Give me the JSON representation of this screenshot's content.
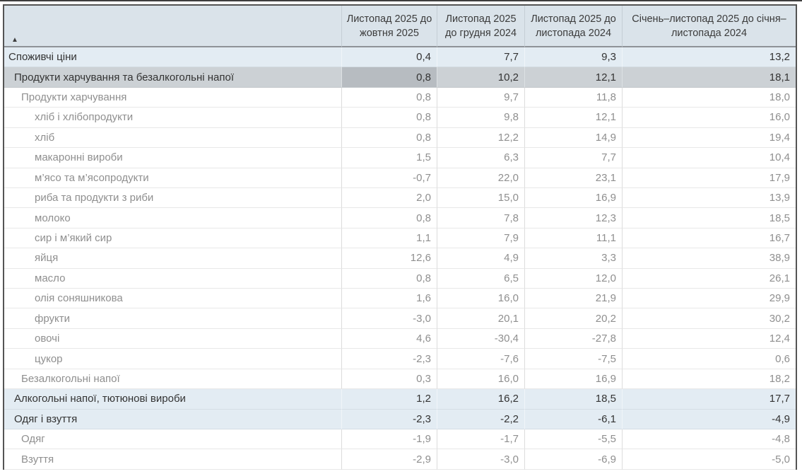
{
  "table": {
    "sort_icon": "▲",
    "sort_icon_name": "sort-ascending-icon",
    "columns": [
      "Листопад 2025 до жовтня 2025",
      "Листопад 2025 до грудня 2024",
      "Листопад 2025 до листопада 2024",
      "Січень–листопад 2025 до січня–листопада 2024"
    ],
    "rows": [
      {
        "label": "Споживчі ціни",
        "level": 0,
        "style": "category",
        "values": [
          "0,4",
          "7,7",
          "9,3",
          "13,2"
        ]
      },
      {
        "label": "Продукти харчування та безалкогольні напої",
        "level": 1,
        "style": "selected",
        "values": [
          "0,8",
          "10,2",
          "12,1",
          "18,1"
        ]
      },
      {
        "label": "Продукти харчування",
        "level": 2,
        "style": "plain",
        "values": [
          "0,8",
          "9,7",
          "11,8",
          "18,0"
        ]
      },
      {
        "label": "хліб і хлібопродукти",
        "level": 3,
        "style": "plain",
        "values": [
          "0,8",
          "9,8",
          "12,1",
          "16,0"
        ]
      },
      {
        "label": "хліб",
        "level": 3,
        "style": "plain",
        "values": [
          "0,8",
          "12,2",
          "14,9",
          "19,4"
        ]
      },
      {
        "label": "макаронні вироби",
        "level": 3,
        "style": "plain",
        "values": [
          "1,5",
          "6,3",
          "7,7",
          "10,4"
        ]
      },
      {
        "label": "м’ясо та м’ясопродукти",
        "level": 3,
        "style": "plain",
        "values": [
          "-0,7",
          "22,0",
          "23,1",
          "17,9"
        ]
      },
      {
        "label": "риба та продукти з риби",
        "level": 3,
        "style": "plain",
        "values": [
          "2,0",
          "15,0",
          "16,9",
          "13,9"
        ]
      },
      {
        "label": "молоко",
        "level": 3,
        "style": "plain",
        "values": [
          "0,8",
          "7,8",
          "12,3",
          "18,5"
        ]
      },
      {
        "label": "сир і м’який сир",
        "level": 3,
        "style": "plain",
        "values": [
          "1,1",
          "7,9",
          "11,1",
          "16,7"
        ]
      },
      {
        "label": "яйця",
        "level": 3,
        "style": "plain",
        "values": [
          "12,6",
          "4,9",
          "3,3",
          "38,9"
        ]
      },
      {
        "label": "масло",
        "level": 3,
        "style": "plain",
        "values": [
          "0,8",
          "6,5",
          "12,0",
          "26,1"
        ]
      },
      {
        "label": "олія соняшникова",
        "level": 3,
        "style": "plain",
        "values": [
          "1,6",
          "16,0",
          "21,9",
          "29,9"
        ]
      },
      {
        "label": "фрукти",
        "level": 3,
        "style": "plain",
        "values": [
          "-3,0",
          "20,1",
          "20,2",
          "30,2"
        ]
      },
      {
        "label": "овочі",
        "level": 3,
        "style": "plain",
        "values": [
          "4,6",
          "-30,4",
          "-27,8",
          "12,4"
        ]
      },
      {
        "label": "цукор",
        "level": 3,
        "style": "plain",
        "values": [
          "-2,3",
          "-7,6",
          "-7,5",
          "0,6"
        ]
      },
      {
        "label": "Безалкогольні напої",
        "level": 2,
        "style": "plain",
        "values": [
          "0,3",
          "16,0",
          "16,9",
          "18,2"
        ]
      },
      {
        "label": "Алкогольні напої, тютюнові вироби",
        "level": 1,
        "style": "category",
        "values": [
          "1,2",
          "16,2",
          "18,5",
          "17,7"
        ]
      },
      {
        "label": "Одяг і взуття",
        "level": 1,
        "style": "category",
        "values": [
          "-2,3",
          "-2,2",
          "-6,1",
          "-4,9"
        ]
      },
      {
        "label": "Одяг",
        "level": 2,
        "style": "plain",
        "values": [
          "-1,9",
          "-1,7",
          "-5,5",
          "-4,8"
        ]
      },
      {
        "label": "Взуття",
        "level": 2,
        "style": "plain",
        "values": [
          "-2,9",
          "-3,0",
          "-6,9",
          "-5,0"
        ]
      }
    ],
    "colors": {
      "header_bg": "#dae3ea",
      "category_row_bg": "#e3ecf3",
      "selected_row_bg": "#ccd1d5",
      "selected_cell_bg": "#b7bcc1",
      "muted_text": "#8f8f8f",
      "dark_text": "#333333",
      "outer_border": "#545454"
    }
  }
}
